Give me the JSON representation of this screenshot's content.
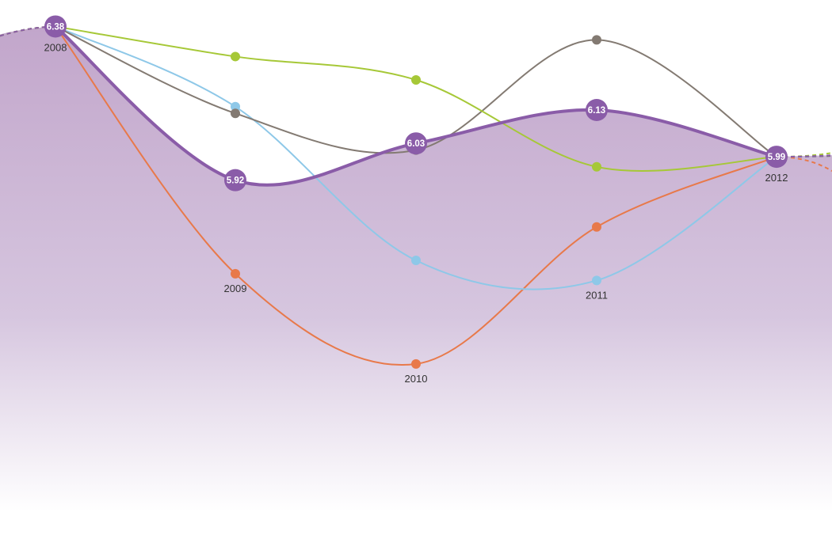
{
  "chart_data": {
    "type": "area",
    "title": "",
    "xlabel": "",
    "ylabel": "",
    "x": [
      "2008",
      "2009",
      "2010",
      "2011",
      "2012"
    ],
    "ylim": [
      5.5,
      6.4
    ],
    "grid": false,
    "series": [
      {
        "color": "#8a5ca8",
        "values": [
          6.38,
          5.92,
          6.03,
          6.13,
          5.99
        ],
        "labeled": true,
        "area": true
      },
      {
        "color": "#e8794a",
        "values": [
          6.38,
          5.64,
          5.37,
          5.78,
          5.99
        ]
      },
      {
        "color": "#8ec8e8",
        "values": [
          6.38,
          6.14,
          5.68,
          5.62,
          5.99
        ]
      },
      {
        "color": "#837a72",
        "values": [
          6.38,
          6.12,
          6.01,
          6.34,
          5.99
        ]
      },
      {
        "color": "#a6c837",
        "values": [
          6.38,
          6.29,
          6.22,
          5.96,
          5.99
        ]
      }
    ]
  }
}
